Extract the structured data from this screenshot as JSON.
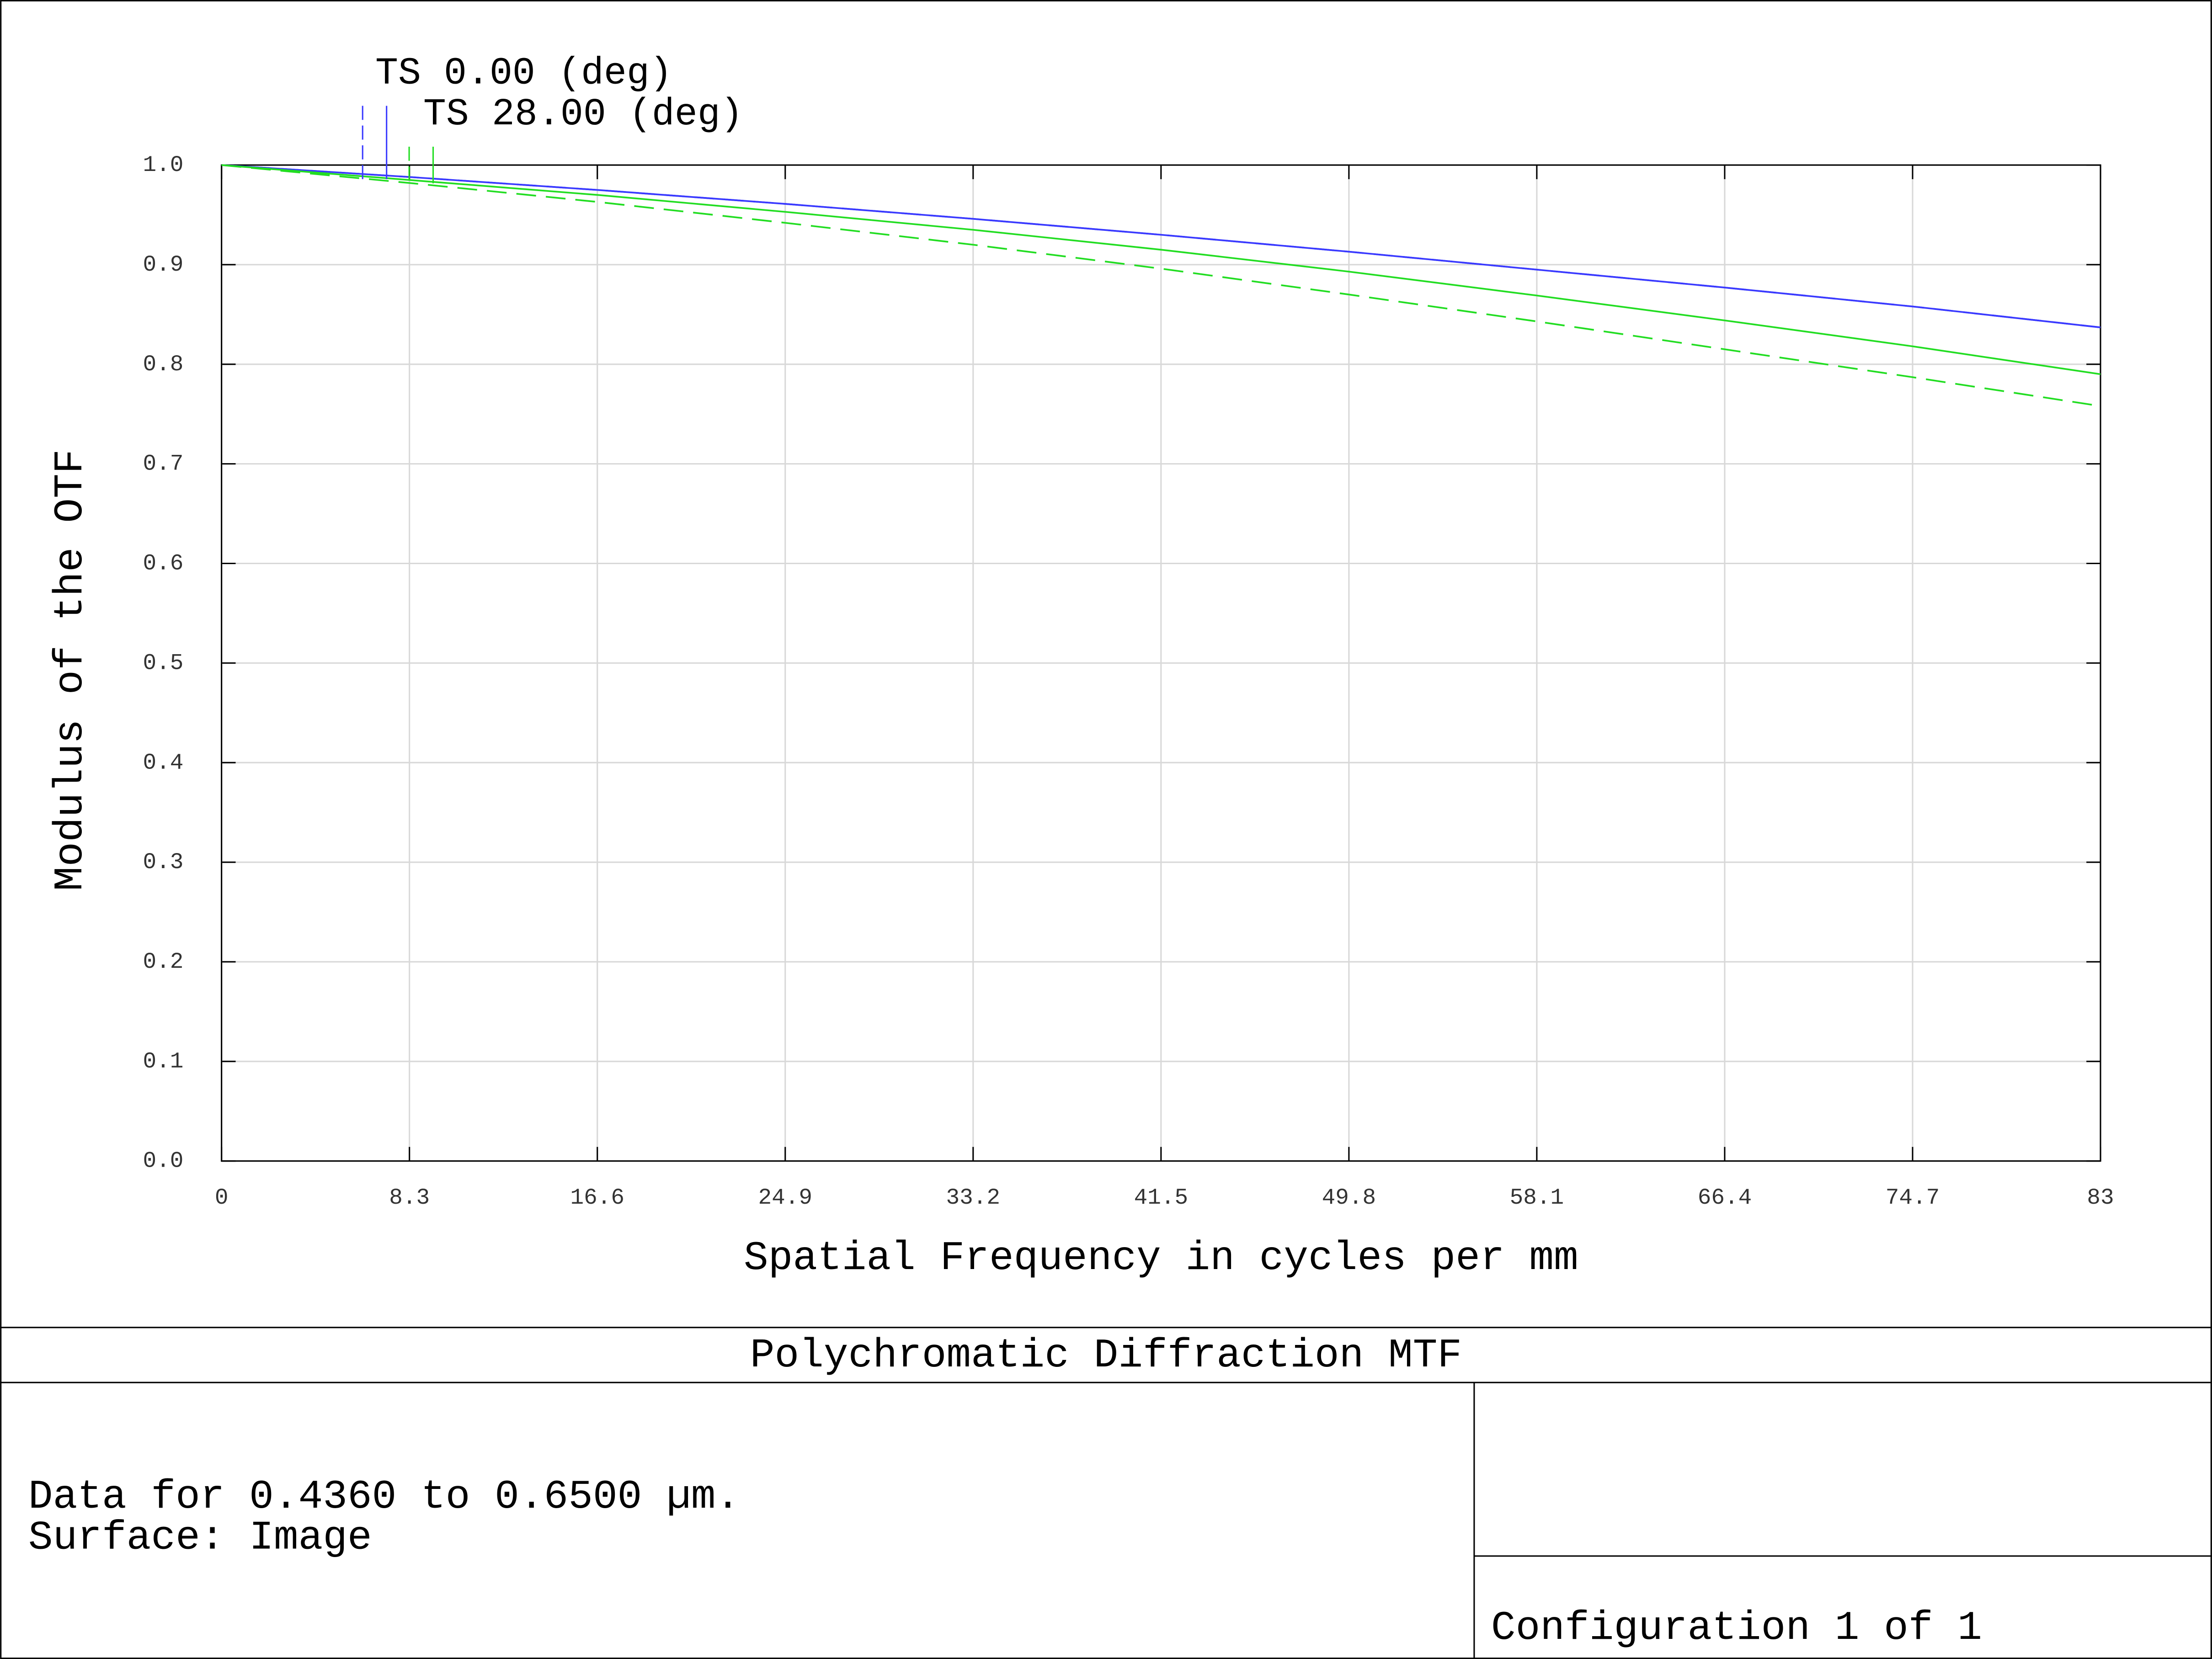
{
  "chart_data": {
    "type": "line",
    "title": "Polychromatic Diffraction MTF",
    "xlabel": "Spatial Frequency in cycles per mm",
    "ylabel": "Modulus of the OTF",
    "x": [
      0,
      8.3,
      16.6,
      24.9,
      33.2,
      41.5,
      49.8,
      58.1,
      66.4,
      74.7,
      83
    ],
    "xlim": [
      0,
      83
    ],
    "xticks": [
      0,
      8.3,
      16.6,
      24.9,
      33.2,
      41.5,
      49.8,
      58.1,
      66.4,
      74.7,
      83
    ],
    "ylim": [
      0,
      1
    ],
    "yticks": [
      {
        "value": 0,
        "label": "0.0"
      },
      0.1,
      0.2,
      0.3,
      0.4,
      0.5,
      0.6,
      0.7,
      0.8,
      0.9,
      {
        "value": 1,
        "label": "1.0"
      }
    ],
    "grid": true,
    "series": [
      {
        "name": "TS 0.00 (deg)",
        "color": "#3a3aff",
        "values": [
          1.0,
          0.988,
          0.975,
          0.961,
          0.946,
          0.93,
          0.913,
          0.895,
          0.877,
          0.858,
          0.837
        ],
        "values_sagittal": [
          1.0,
          0.988,
          0.975,
          0.961,
          0.946,
          0.93,
          0.913,
          0.895,
          0.877,
          0.858,
          0.837
        ]
      },
      {
        "name": "TS 28.00 (deg)",
        "color": "#22dd22",
        "values": [
          1.0,
          0.985,
          0.97,
          0.953,
          0.935,
          0.915,
          0.893,
          0.869,
          0.844,
          0.818,
          0.79
        ],
        "values_sagittal": [
          1.0,
          0.982,
          0.963,
          0.942,
          0.92,
          0.896,
          0.87,
          0.843,
          0.815,
          0.787,
          0.758
        ]
      }
    ]
  },
  "footer": {
    "lines": [
      "Data for 0.4360 to 0.6500 µm.",
      "Surface: Image"
    ],
    "configuration": "Configuration 1 of 1"
  }
}
